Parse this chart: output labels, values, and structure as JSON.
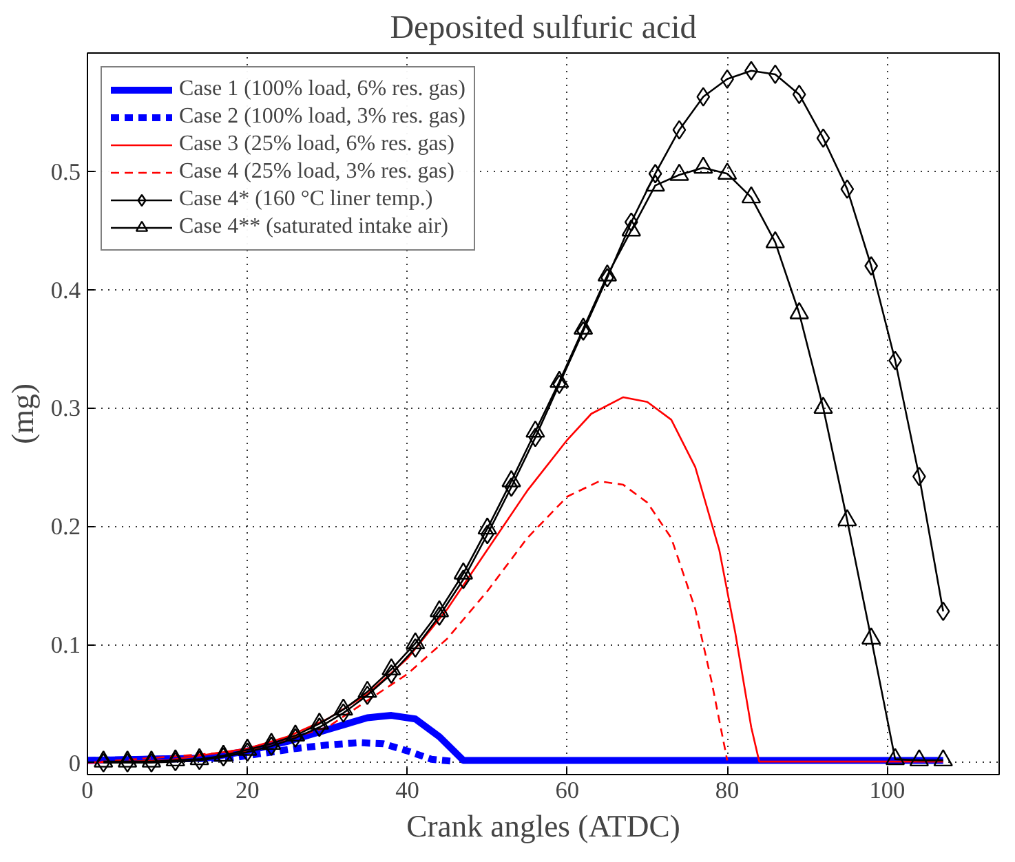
{
  "chart_data": {
    "type": "line",
    "title": "Deposited sulfuric acid",
    "xlabel": "Crank angles (ATDC)",
    "ylabel": "(mg)",
    "xlim": [
      0,
      114
    ],
    "ylim": [
      -0.01,
      0.6
    ],
    "xticks": [
      0,
      20,
      40,
      60,
      80,
      100
    ],
    "yticks": [
      0,
      0.1,
      0.2,
      0.3,
      0.4,
      0.5
    ],
    "grid": true,
    "legend": "top left",
    "series": [
      {
        "name": "Case 1 (100% load, 6% res. gas)",
        "color": "#0000ff",
        "line_style": "solid",
        "marker": "none",
        "x": [
          0,
          15,
          20,
          25,
          30,
          35,
          38,
          41,
          44,
          47,
          60,
          80,
          107
        ],
        "values": [
          0.002,
          0.004,
          0.01,
          0.018,
          0.028,
          0.038,
          0.04,
          0.037,
          0.022,
          0.002,
          0.002,
          0.002,
          0.002
        ]
      },
      {
        "name": "Case 2 (100% load, 3% res. gas)",
        "color": "#0000ff",
        "line_style": "dashed",
        "marker": "none",
        "x": [
          0,
          18,
          22,
          26,
          30,
          34,
          37,
          40,
          43,
          46
        ],
        "values": [
          0.002,
          0.004,
          0.008,
          0.012,
          0.015,
          0.017,
          0.016,
          0.01,
          0.003,
          0.001
        ]
      },
      {
        "name": "Case 3 (25% load, 6% res. gas)",
        "color": "#ff0000",
        "line_style": "solid",
        "marker": "none",
        "x": [
          0,
          10,
          20,
          25,
          30,
          35,
          40,
          45,
          50,
          55,
          60,
          63,
          67,
          70,
          73,
          76,
          79,
          81,
          83,
          84,
          107
        ],
        "values": [
          0,
          0.002,
          0.012,
          0.022,
          0.037,
          0.058,
          0.088,
          0.13,
          0.18,
          0.23,
          0.273,
          0.295,
          0.309,
          0.305,
          0.29,
          0.25,
          0.18,
          0.11,
          0.03,
          0.001,
          0.001
        ]
      },
      {
        "name": "Case 4 (25% load, 3% res. gas)",
        "color": "#ff0000",
        "line_style": "dashed",
        "marker": "none",
        "x": [
          0,
          20,
          30,
          40,
          45,
          50,
          55,
          60,
          64,
          67,
          70,
          73,
          76,
          78,
          80
        ],
        "values": [
          0,
          0.01,
          0.03,
          0.075,
          0.105,
          0.145,
          0.19,
          0.225,
          0.238,
          0.235,
          0.22,
          0.19,
          0.13,
          0.07,
          0.002
        ]
      },
      {
        "name": "Case 4* (160 °C liner temp.)",
        "color": "#000000",
        "line_style": "solid",
        "marker": "diamond",
        "x": [
          2,
          5,
          8,
          11,
          14,
          17,
          20,
          23,
          26,
          29,
          32,
          35,
          38,
          41,
          44,
          47,
          50,
          53,
          56,
          59,
          62,
          65,
          68,
          71,
          74,
          77,
          80,
          83,
          86,
          89,
          92,
          95,
          98,
          101,
          104,
          107
        ],
        "values": [
          0,
          0,
          0,
          0.001,
          0.002,
          0.005,
          0.009,
          0.014,
          0.021,
          0.03,
          0.042,
          0.057,
          0.075,
          0.097,
          0.124,
          0.155,
          0.193,
          0.233,
          0.275,
          0.32,
          0.365,
          0.41,
          0.457,
          0.498,
          0.535,
          0.563,
          0.578,
          0.585,
          0.582,
          0.565,
          0.528,
          0.485,
          0.42,
          0.34,
          0.242,
          0.128
        ]
      },
      {
        "name": "Case 4** (saturated intake air)",
        "color": "#000000",
        "line_style": "solid",
        "marker": "triangle",
        "x": [
          2,
          5,
          8,
          11,
          14,
          17,
          20,
          23,
          26,
          29,
          32,
          35,
          38,
          41,
          44,
          47,
          50,
          53,
          56,
          59,
          62,
          65,
          68,
          71,
          74,
          77,
          80,
          83,
          86,
          89,
          92,
          95,
          98,
          101,
          104,
          107
        ],
        "values": [
          0.001,
          0.001,
          0.001,
          0.002,
          0.003,
          0.006,
          0.011,
          0.016,
          0.023,
          0.033,
          0.045,
          0.06,
          0.079,
          0.101,
          0.128,
          0.16,
          0.198,
          0.238,
          0.28,
          0.322,
          0.367,
          0.412,
          0.45,
          0.488,
          0.497,
          0.503,
          0.498,
          0.478,
          0.44,
          0.38,
          0.3,
          0.205,
          0.105,
          0.003,
          0.002,
          0.002
        ]
      }
    ]
  }
}
